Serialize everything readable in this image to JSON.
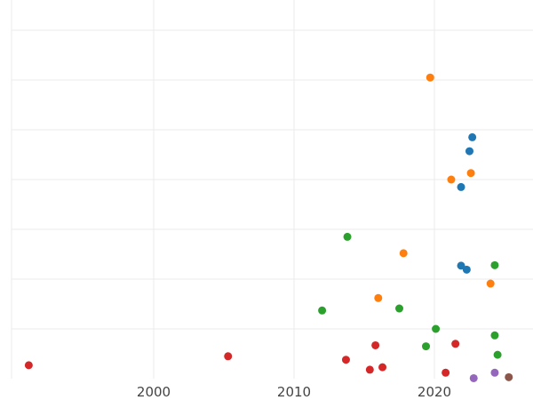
{
  "chart_data": {
    "type": "scatter",
    "title": "",
    "xlabel": "",
    "ylabel": "",
    "grid": true,
    "xlim": [
      1990,
      2027
    ],
    "ylim": [
      0,
      7.6
    ],
    "xticks": [
      2000,
      2010,
      2020
    ],
    "ygrid_values": [
      1,
      2,
      3,
      4,
      5,
      6,
      7
    ],
    "series": [
      {
        "color": "#d62728",
        "points": [
          {
            "x": 1991.1,
            "y": 0.27
          },
          {
            "x": 2005.3,
            "y": 0.45
          },
          {
            "x": 2013.7,
            "y": 0.38
          },
          {
            "x": 2015.4,
            "y": 0.18
          },
          {
            "x": 2015.8,
            "y": 0.67
          },
          {
            "x": 2016.3,
            "y": 0.23
          },
          {
            "x": 2020.8,
            "y": 0.12
          },
          {
            "x": 2021.5,
            "y": 0.7
          }
        ]
      },
      {
        "color": "#ff7f0e",
        "points": [
          {
            "x": 2019.7,
            "y": 6.05
          },
          {
            "x": 2021.2,
            "y": 4.0
          },
          {
            "x": 2022.6,
            "y": 4.13
          },
          {
            "x": 2017.8,
            "y": 2.52
          },
          {
            "x": 2016.0,
            "y": 1.62
          },
          {
            "x": 2024.0,
            "y": 1.91
          }
        ]
      },
      {
        "color": "#1f77b4",
        "points": [
          {
            "x": 2022.7,
            "y": 4.85
          },
          {
            "x": 2022.5,
            "y": 4.57
          },
          {
            "x": 2021.9,
            "y": 3.85
          },
          {
            "x": 2021.9,
            "y": 2.27
          },
          {
            "x": 2022.3,
            "y": 2.19
          }
        ]
      },
      {
        "color": "#2ca02c",
        "points": [
          {
            "x": 2013.8,
            "y": 2.85
          },
          {
            "x": 2012.0,
            "y": 1.37
          },
          {
            "x": 2017.5,
            "y": 1.41
          },
          {
            "x": 2020.1,
            "y": 1.0
          },
          {
            "x": 2019.4,
            "y": 0.65
          },
          {
            "x": 2024.3,
            "y": 2.28
          },
          {
            "x": 2024.3,
            "y": 0.87
          },
          {
            "x": 2024.5,
            "y": 0.48
          }
        ]
      },
      {
        "color": "#9467bd",
        "points": [
          {
            "x": 2024.3,
            "y": 0.12
          },
          {
            "x": 2022.8,
            "y": 0.01
          }
        ]
      },
      {
        "color": "#8c564b",
        "points": [
          {
            "x": 2025.3,
            "y": 0.03
          }
        ]
      }
    ]
  }
}
